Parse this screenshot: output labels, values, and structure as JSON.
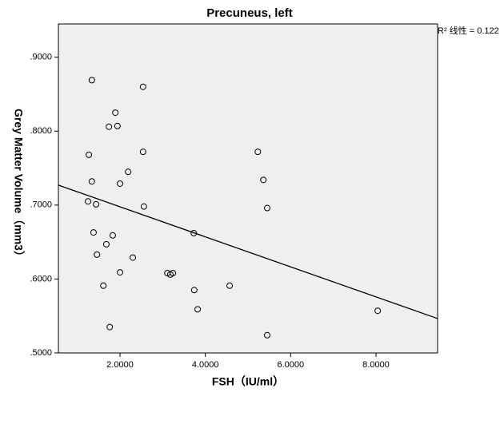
{
  "chart_data": {
    "type": "scatter",
    "title": "Precuneus, left",
    "xlabel": "FSH（IU/ml）",
    "ylabel": "Grey Matter Volume（mm3）",
    "annotation": "R² 线性 = 0.122",
    "x": [
      1.34,
      2.54,
      1.89,
      1.74,
      1.94,
      1.27,
      2.54,
      2.19,
      1.34,
      2.0,
      1.25,
      1.44,
      2.56,
      5.23,
      5.36,
      5.45,
      1.38,
      1.83,
      3.73,
      1.68,
      1.46,
      2.3,
      2.0,
      3.11,
      3.18,
      3.24,
      1.61,
      3.74,
      4.57,
      3.82,
      8.04,
      1.76,
      5.45
    ],
    "values": [
      0.869,
      0.86,
      0.825,
      0.806,
      0.807,
      0.768,
      0.772,
      0.745,
      0.732,
      0.729,
      0.705,
      0.701,
      0.698,
      0.772,
      0.734,
      0.696,
      0.663,
      0.659,
      0.662,
      0.647,
      0.633,
      0.629,
      0.609,
      0.608,
      0.606,
      0.608,
      0.591,
      0.585,
      0.591,
      0.559,
      0.557,
      0.535,
      0.524
    ],
    "fit_line": {
      "x": [
        0.556,
        9.444
      ],
      "y": [
        0.727,
        0.5465
      ]
    },
    "color": "#000000",
    "xlim": [
      0.556,
      9.444
    ],
    "ylim": [
      0.5,
      0.945
    ],
    "xticks": [
      {
        "value": 2,
        "label": "2.0000"
      },
      {
        "value": 4,
        "label": "4.0000"
      },
      {
        "value": 6,
        "label": "6.0000"
      },
      {
        "value": 8,
        "label": "8.0000"
      }
    ],
    "yticks": [
      {
        "value": 0.5,
        "label": ".5000"
      },
      {
        "value": 0.6,
        "label": ".6000"
      },
      {
        "value": 0.7,
        "label": ".7000"
      },
      {
        "value": 0.8,
        "label": ".8000"
      },
      {
        "value": 0.9,
        "label": ".9000"
      }
    ]
  }
}
